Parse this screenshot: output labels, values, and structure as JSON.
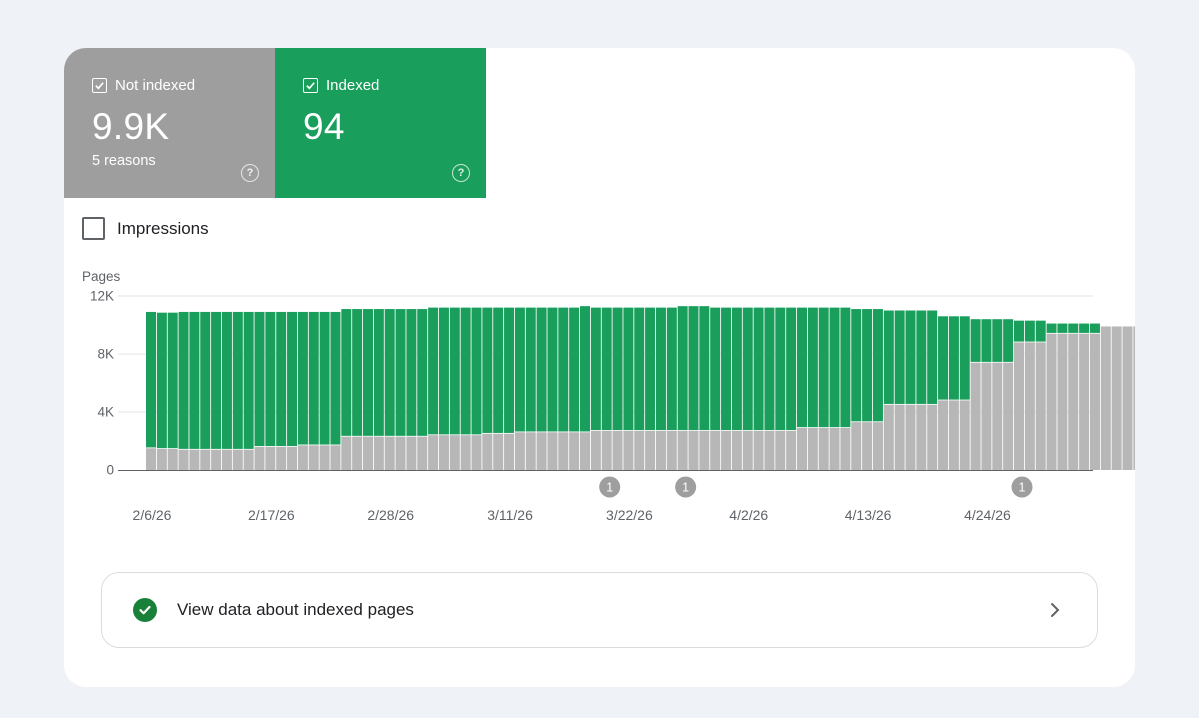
{
  "tiles": {
    "not_indexed": {
      "label": "Not indexed",
      "value": "9.9K",
      "sub": "5 reasons",
      "color": "#9e9e9e"
    },
    "indexed": {
      "label": "Indexed",
      "value": "94",
      "color": "#1a9e5c"
    }
  },
  "impressions": {
    "label": "Impressions",
    "checked": false
  },
  "cta": {
    "label": "View data about indexed pages",
    "icon": "check-circle-icon",
    "chevron": "chevron-right-icon"
  },
  "chart_data": {
    "type": "bar",
    "stacked": true,
    "ylabel": "Pages",
    "ylim": [
      0,
      12000
    ],
    "yticks": [
      "0",
      "4K",
      "8K",
      "12K"
    ],
    "ytick_values": [
      0,
      4000,
      8000,
      12000
    ],
    "xtick_labels": [
      "2/6/26",
      "2/17/26",
      "2/28/26",
      "3/11/26",
      "3/22/26",
      "4/2/26",
      "4/13/26",
      "4/24/26"
    ],
    "xtick_start_index": [
      0,
      11,
      22,
      33,
      44,
      55,
      66,
      77
    ],
    "grid": true,
    "series": [
      {
        "color": "#b7b7b7",
        "values": [
          1500,
          1450,
          1450,
          1400,
          1400,
          1400,
          1400,
          1400,
          1400,
          1400,
          1600,
          1600,
          1600,
          1600,
          1700,
          1700,
          1700,
          1700,
          2300,
          2300,
          2300,
          2300,
          2300,
          2300,
          2300,
          2300,
          2400,
          2400,
          2400,
          2400,
          2400,
          2500,
          2500,
          2500,
          2600,
          2600,
          2600,
          2600,
          2600,
          2600,
          2600,
          2700,
          2700,
          2700,
          2700,
          2700,
          2700,
          2700,
          2700,
          2700,
          2700,
          2700,
          2700,
          2700,
          2700,
          2700,
          2700,
          2700,
          2700,
          2700,
          2900,
          2900,
          2900,
          2900,
          2900,
          3300,
          3300,
          3300,
          4500,
          4500,
          4500,
          4500,
          4500,
          4800,
          4800,
          4800,
          7400,
          7400,
          7400,
          7400,
          8800,
          8800,
          8800,
          9400,
          9400,
          9400,
          9400,
          9400,
          9900,
          9900,
          9900,
          9900,
          9900
        ]
      },
      {
        "color": "#1a9e5c",
        "values": [
          9400,
          9400,
          9400,
          9500,
          9500,
          9500,
          9500,
          9500,
          9500,
          9500,
          9300,
          9300,
          9300,
          9300,
          9200,
          9200,
          9200,
          9200,
          8800,
          8800,
          8800,
          8800,
          8800,
          8800,
          8800,
          8800,
          8800,
          8800,
          8800,
          8800,
          8800,
          8700,
          8700,
          8700,
          8600,
          8600,
          8600,
          8600,
          8600,
          8600,
          8700,
          8500,
          8500,
          8500,
          8500,
          8500,
          8500,
          8500,
          8500,
          8600,
          8600,
          8600,
          8500,
          8500,
          8500,
          8500,
          8500,
          8500,
          8500,
          8500,
          8300,
          8300,
          8300,
          8300,
          8300,
          7800,
          7800,
          7800,
          6500,
          6500,
          6500,
          6500,
          6500,
          5800,
          5800,
          5800,
          3000,
          3000,
          3000,
          3000,
          1500,
          1500,
          1500,
          700,
          700,
          700,
          700,
          700,
          0,
          0,
          0,
          0,
          0
        ]
      }
    ],
    "annotations": [
      {
        "label": "1",
        "index": 42
      },
      {
        "label": "1",
        "index": 49
      },
      {
        "label": "1",
        "index": 80
      }
    ]
  }
}
